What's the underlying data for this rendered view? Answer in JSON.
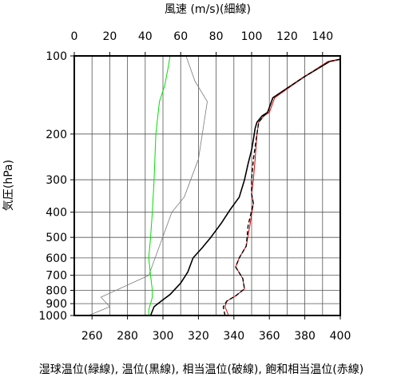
{
  "chart_data": {
    "type": "line",
    "title_top": "風速 (m/s)(細線)",
    "ylabel": "気圧(hPa)",
    "xlabel_bottom": "湿球温位(緑線), 温位(黒線), 相当温位(破線), 飽和相当温位(赤線)",
    "y_scale": "log",
    "y_reversed": true,
    "ylim": [
      1000,
      100
    ],
    "y_ticks": [
      100,
      200,
      300,
      400,
      500,
      600,
      700,
      800,
      900,
      1000
    ],
    "y_labels": [
      "100",
      "200",
      "300",
      "400",
      "500",
      "600",
      "700",
      "800",
      "900",
      "1000"
    ],
    "x_bottom_lim": [
      250,
      400
    ],
    "x_bottom_ticks": [
      260,
      280,
      300,
      320,
      340,
      360,
      380,
      400
    ],
    "x_bottom_labels": [
      "260",
      "280",
      "300",
      "320",
      "340",
      "360",
      "380",
      "400"
    ],
    "x_top_lim": [
      0,
      150
    ],
    "x_top_ticks": [
      0,
      20,
      40,
      60,
      80,
      100,
      120,
      140
    ],
    "x_top_labels": [
      "0",
      "20",
      "40",
      "60",
      "80",
      "100",
      "120",
      "140"
    ],
    "grid": true,
    "series": [
      {
        "key": "wind_speed",
        "axis": "top",
        "color": "#7a7a7a",
        "width": 0.8,
        "dash": "",
        "points": [
          [
            8,
            1000
          ],
          [
            20,
            925
          ],
          [
            15,
            850
          ],
          [
            42,
            700
          ],
          [
            55,
            400
          ],
          [
            62,
            350
          ],
          [
            70,
            250
          ],
          [
            75,
            150
          ],
          [
            68,
            125
          ],
          [
            63,
            100
          ]
        ]
      },
      {
        "key": "wet_bulb_potential_temp",
        "axis": "bottom",
        "color": "#00e000",
        "width": 1,
        "dash": "",
        "points": [
          [
            292,
            1000
          ],
          [
            292,
            950
          ],
          [
            293,
            900
          ],
          [
            294,
            850
          ],
          [
            294,
            800
          ],
          [
            293,
            700
          ],
          [
            292,
            600
          ],
          [
            293,
            500
          ],
          [
            294,
            400
          ],
          [
            295,
            300
          ],
          [
            296,
            200
          ],
          [
            298,
            150
          ],
          [
            301,
            130
          ],
          [
            303,
            110
          ],
          [
            304,
            100
          ]
        ]
      },
      {
        "key": "potential_temp",
        "axis": "bottom",
        "color": "#000000",
        "width": 1.6,
        "dash": "",
        "points": [
          [
            293,
            1000
          ],
          [
            295,
            925
          ],
          [
            299,
            880
          ],
          [
            304,
            830
          ],
          [
            310,
            750
          ],
          [
            314,
            680
          ],
          [
            317,
            600
          ],
          [
            322,
            550
          ],
          [
            327,
            500
          ],
          [
            333,
            440
          ],
          [
            338,
            390
          ],
          [
            343,
            350
          ],
          [
            346,
            300
          ],
          [
            348,
            260
          ],
          [
            350,
            230
          ],
          [
            351,
            210
          ],
          [
            352,
            190
          ],
          [
            353,
            180
          ],
          [
            356,
            170
          ],
          [
            359,
            165
          ],
          [
            362,
            145
          ],
          [
            380,
            120
          ],
          [
            394,
            105
          ],
          [
            400,
            103
          ]
        ]
      },
      {
        "key": "saturation_equiv_potential_temp",
        "axis": "bottom",
        "color": "#e00000",
        "width": 1,
        "dash": "",
        "points": [
          [
            337,
            1000
          ],
          [
            335,
            925
          ],
          [
            336,
            880
          ],
          [
            341,
            840
          ],
          [
            346,
            790
          ],
          [
            345,
            720
          ],
          [
            341,
            650
          ],
          [
            343,
            600
          ],
          [
            347,
            540
          ],
          [
            349,
            450
          ],
          [
            351,
            370
          ],
          [
            350,
            340
          ],
          [
            351,
            300
          ],
          [
            352,
            250
          ],
          [
            353,
            200
          ],
          [
            354,
            180
          ],
          [
            357,
            170
          ],
          [
            360,
            165
          ],
          [
            363,
            145
          ],
          [
            380,
            120
          ],
          [
            393,
            105
          ],
          [
            400,
            103
          ]
        ]
      },
      {
        "key": "equiv_potential_temp",
        "axis": "bottom",
        "color": "#000000",
        "width": 1.4,
        "dash": "5,3",
        "points": [
          [
            335,
            1000
          ],
          [
            334,
            925
          ],
          [
            336,
            880
          ],
          [
            341,
            840
          ],
          [
            346,
            790
          ],
          [
            345,
            720
          ],
          [
            341,
            650
          ],
          [
            343,
            600
          ],
          [
            347,
            540
          ],
          [
            348,
            450
          ],
          [
            351,
            370
          ],
          [
            350,
            340
          ],
          [
            350,
            300
          ],
          [
            351,
            250
          ],
          [
            353,
            200
          ],
          [
            354,
            180
          ],
          [
            357,
            170
          ],
          [
            359,
            165
          ],
          [
            362,
            145
          ],
          [
            380,
            120
          ],
          [
            394,
            105
          ],
          [
            400,
            103
          ]
        ]
      }
    ]
  }
}
